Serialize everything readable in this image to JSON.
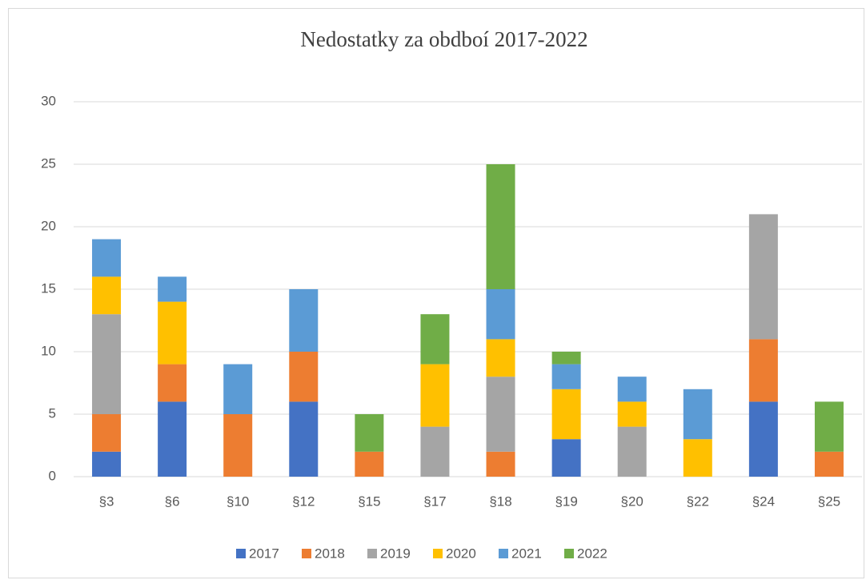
{
  "chart_data": {
    "type": "stacked_bar",
    "title": "Nedostatky za obdboí 2017-2022",
    "categories": [
      "§3",
      "§6",
      "§10",
      "§12",
      "§15",
      "§17",
      "§18",
      "§19",
      "§20",
      "§22",
      "§24",
      "§25"
    ],
    "series": [
      {
        "name": "2017",
        "color": "#4472c4",
        "values": [
          2,
          6,
          0,
          6,
          0,
          0,
          0,
          3,
          0,
          0,
          6,
          0
        ]
      },
      {
        "name": "2018",
        "color": "#ed7d31",
        "values": [
          3,
          3,
          5,
          4,
          2,
          0,
          2,
          0,
          0,
          0,
          5,
          2
        ]
      },
      {
        "name": "2019",
        "color": "#a5a5a5",
        "values": [
          8,
          0,
          0,
          0,
          0,
          4,
          6,
          0,
          4,
          0,
          10,
          0
        ]
      },
      {
        "name": "2020",
        "color": "#ffc000",
        "values": [
          3,
          5,
          0,
          0,
          0,
          5,
          3,
          4,
          2,
          3,
          0,
          0
        ]
      },
      {
        "name": "2021",
        "color": "#5b9bd5",
        "values": [
          3,
          2,
          4,
          5,
          0,
          0,
          4,
          2,
          2,
          4,
          0,
          0
        ]
      },
      {
        "name": "2022",
        "color": "#70ad47",
        "values": [
          0,
          0,
          0,
          0,
          3,
          4,
          10,
          1,
          0,
          0,
          0,
          4
        ]
      }
    ],
    "ylim": [
      0,
      30
    ],
    "yticks": [
      0,
      5,
      10,
      15,
      20,
      25,
      30
    ],
    "grid": true,
    "legend": "bottom"
  }
}
